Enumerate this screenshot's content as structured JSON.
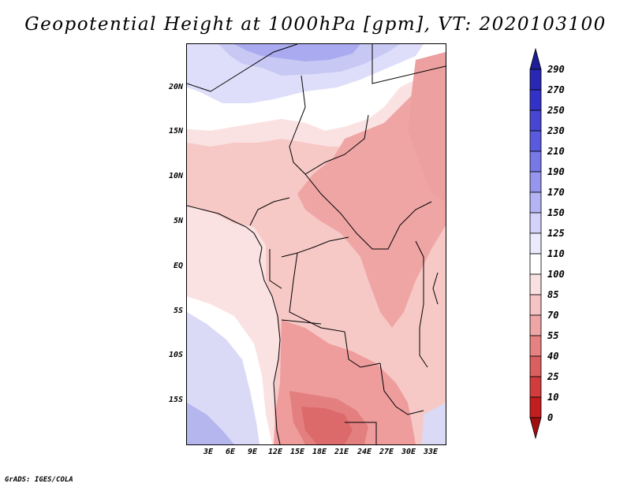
{
  "title": "Geopotential Height at 1000hPa [gpm], VT: 2020103100",
  "credit": "GrADS: IGES/COLA",
  "map": {
    "lat_labels": [
      "20N",
      "15N",
      "10N",
      "5N",
      "EQ",
      "5S",
      "10S",
      "15S"
    ],
    "lon_labels": [
      "3E",
      "6E",
      "9E",
      "12E",
      "15E",
      "18E",
      "21E",
      "24E",
      "27E",
      "30E",
      "33E"
    ]
  },
  "colorbar": {
    "labels": [
      "290",
      "270",
      "250",
      "230",
      "210",
      "190",
      "170",
      "150",
      "125",
      "110",
      "100",
      "85",
      "70",
      "55",
      "40",
      "25",
      "10",
      "0"
    ],
    "colors": [
      "#1e1e96",
      "#2828b4",
      "#3232c8",
      "#4646d2",
      "#5a5ade",
      "#7878e6",
      "#9696ee",
      "#b4b4f4",
      "#d2d2fa",
      "#ebebfd",
      "#ffffff",
      "#fae1e1",
      "#f5c3c3",
      "#eea5a5",
      "#e68282",
      "#dc5f5f",
      "#d23c3c",
      "#c31e1e",
      "#a00f0f"
    ]
  },
  "colors": {
    "ocean_sw": "#d9d9f7",
    "ocean_s": "#b5b5ee",
    "land_base": "#f6c9c6",
    "north_blue": "#c8c8f4",
    "north_white": "#ffffff",
    "low_red": "#e57f7f"
  }
}
